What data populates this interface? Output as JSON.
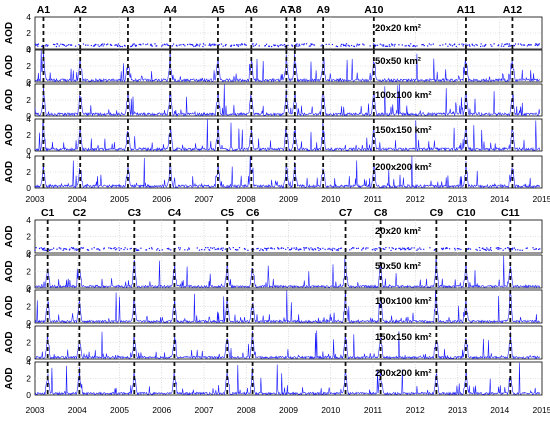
{
  "chart_data": [
    {
      "type": "line",
      "title": "",
      "xlabel": "",
      "ylabel": "AOD",
      "x_range": [
        2003,
        2015
      ],
      "ylim": [
        0,
        4
      ],
      "y_ticks": [
        0,
        2,
        4
      ],
      "x_tick_labels": [
        "2003",
        "2004",
        "2005",
        "2006",
        "2007",
        "2008",
        "2009",
        "2010",
        "2011",
        "2012",
        "2013",
        "2014",
        "2015"
      ],
      "grid": true,
      "panels": [
        {
          "name": "20x20 km²",
          "style": "scatter",
          "density": 0.35
        },
        {
          "name": "50x50 km²",
          "style": "line",
          "density": 1.0
        },
        {
          "name": "100x100 km²",
          "style": "line",
          "density": 1.0
        },
        {
          "name": "150x150 km²",
          "style": "line",
          "density": 1.0
        },
        {
          "name": "200x200 km²",
          "style": "line",
          "density": 1.0
        }
      ],
      "events": [
        {
          "label": "A1",
          "x": 2003.2
        },
        {
          "label": "A2",
          "x": 2004.07
        },
        {
          "label": "A3",
          "x": 2005.2
        },
        {
          "label": "A4",
          "x": 2006.2
        },
        {
          "label": "A5",
          "x": 2007.33
        },
        {
          "label": "A6",
          "x": 2008.12
        },
        {
          "label": "A7",
          "x": 2008.95
        },
        {
          "label": "A8",
          "x": 2009.15
        },
        {
          "label": "A9",
          "x": 2009.82
        },
        {
          "label": "A10",
          "x": 2011.02
        },
        {
          "label": "A11",
          "x": 2013.2
        },
        {
          "label": "A12",
          "x": 2014.3
        }
      ]
    },
    {
      "type": "line",
      "title": "",
      "xlabel": "",
      "ylabel": "AOD",
      "x_range": [
        2003,
        2015
      ],
      "ylim": [
        0,
        4
      ],
      "y_ticks": [
        0,
        2,
        4
      ],
      "x_tick_labels": [
        "2003",
        "2004",
        "2005",
        "2006",
        "2007",
        "2008",
        "2009",
        "2010",
        "2011",
        "2012",
        "2013",
        "2014",
        "2015"
      ],
      "grid": true,
      "panels": [
        {
          "name": "20x20 km²",
          "style": "scatter",
          "density": 0.35
        },
        {
          "name": "50x50 km²",
          "style": "line",
          "density": 0.8
        },
        {
          "name": "100x100 km²",
          "style": "line",
          "density": 0.8
        },
        {
          "name": "150x150 km²",
          "style": "line",
          "density": 0.8
        },
        {
          "name": "200x200 km²",
          "style": "line",
          "density": 0.8
        }
      ],
      "events": [
        {
          "label": "C1",
          "x": 2003.3
        },
        {
          "label": "C2",
          "x": 2004.05
        },
        {
          "label": "C3",
          "x": 2005.35
        },
        {
          "label": "C4",
          "x": 2006.3
        },
        {
          "label": "C5",
          "x": 2007.55
        },
        {
          "label": "C6",
          "x": 2008.15
        },
        {
          "label": "C7",
          "x": 2010.35
        },
        {
          "label": "C8",
          "x": 2011.18
        },
        {
          "label": "C9",
          "x": 2012.5
        },
        {
          "label": "C10",
          "x": 2013.2
        },
        {
          "label": "C11",
          "x": 2014.25
        }
      ]
    }
  ],
  "colors": {
    "series": "#1a1aff",
    "event_line": "#111111",
    "grid": "#c4c4c4",
    "axis": "#000000"
  }
}
